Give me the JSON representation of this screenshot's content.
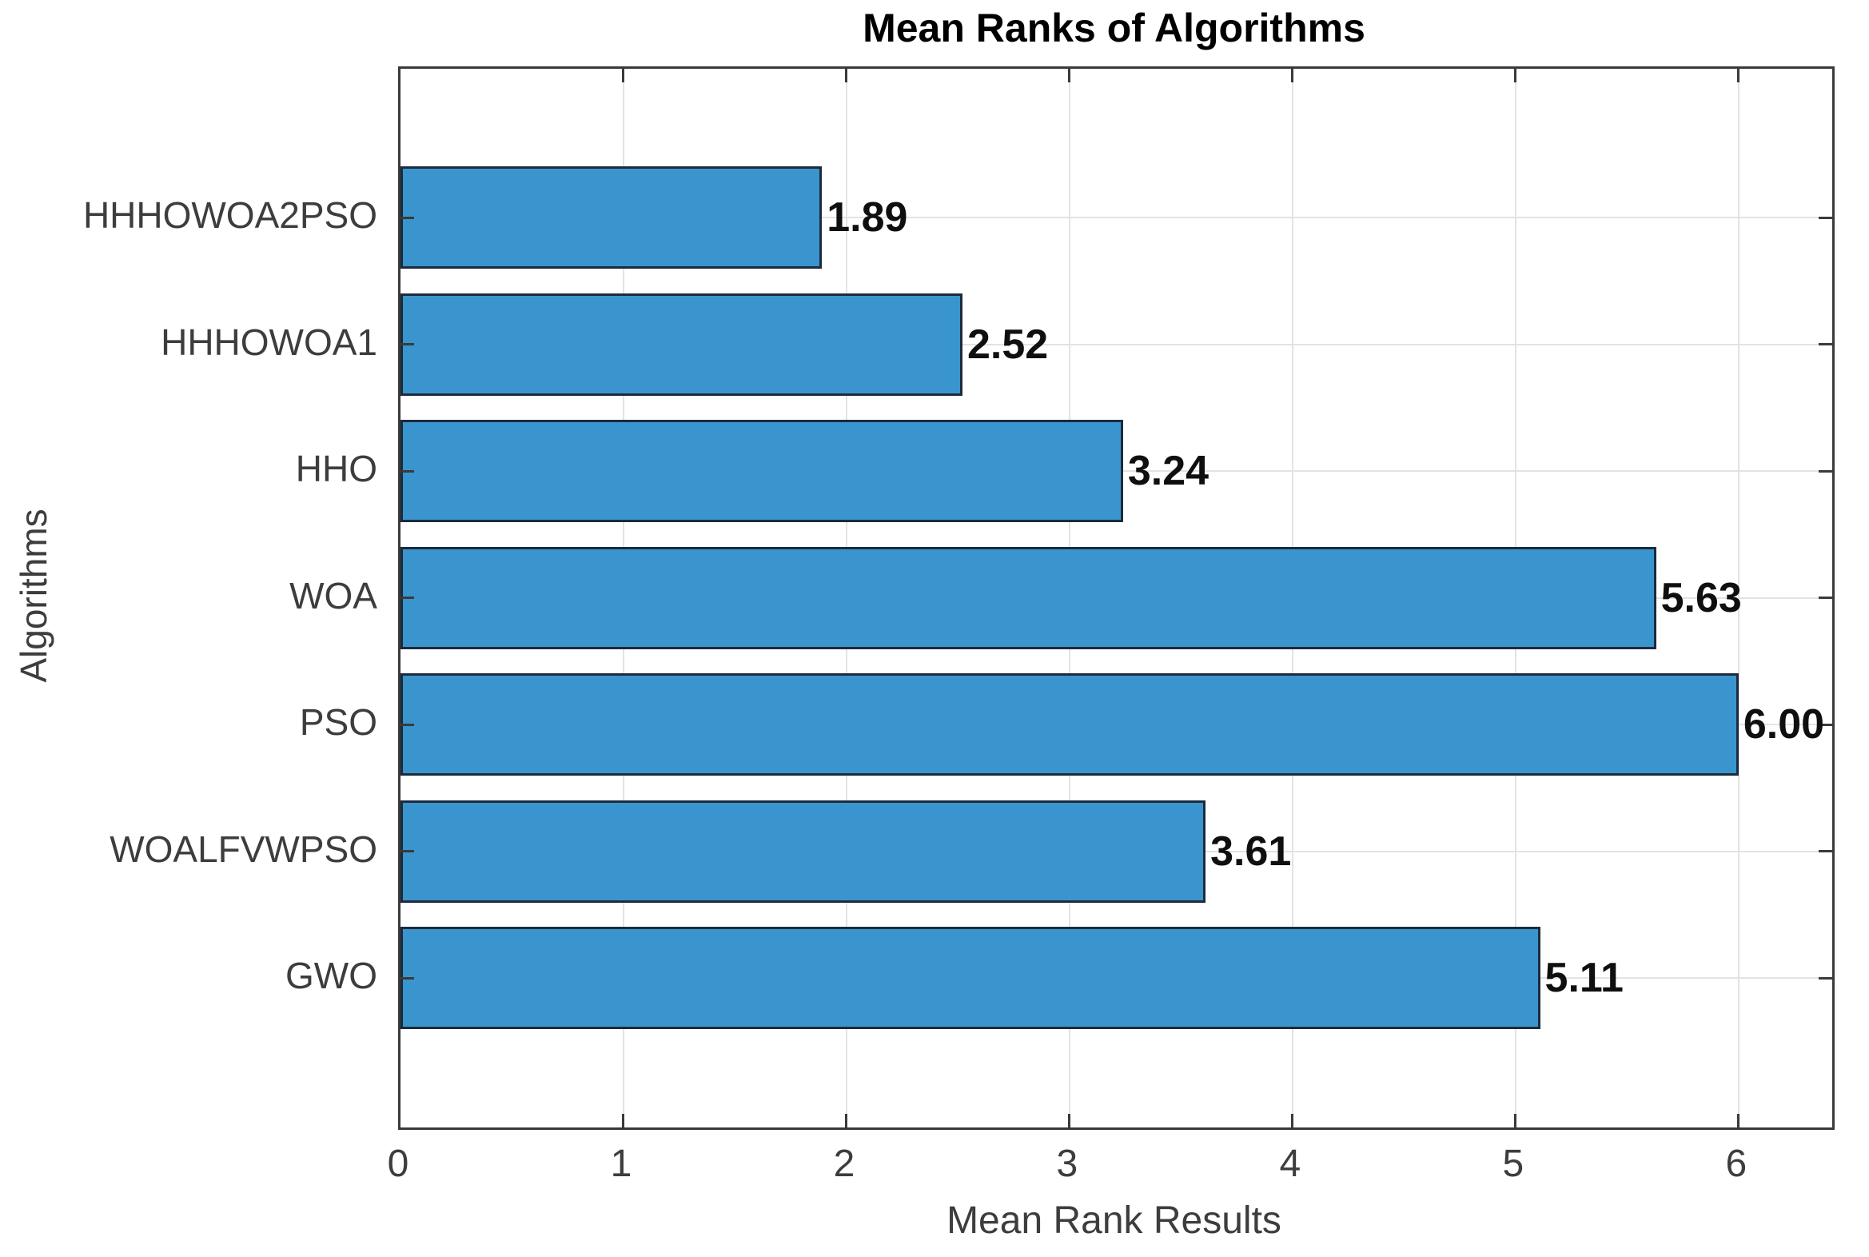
{
  "chart_data": {
    "type": "bar",
    "orientation": "horizontal",
    "title": "Mean Ranks of Algorithms",
    "xlabel": "Mean Rank Results",
    "ylabel": "Algorithms",
    "categories_top_to_bottom": [
      "HHHOWOA2PSO",
      "HHHOWOA1",
      "HHO",
      "WOA",
      "PSO",
      "WOALFVWPSO",
      "GWO"
    ],
    "values": [
      1.89,
      2.52,
      3.24,
      5.63,
      6.0,
      3.61,
      5.11
    ],
    "value_labels": [
      "1.89",
      "2.52",
      "3.24",
      "5.63",
      "6.00",
      "3.61",
      "5.11"
    ],
    "x_ticks": [
      0,
      1,
      2,
      3,
      4,
      5,
      6
    ],
    "x_tick_labels": [
      "0",
      "1",
      "2",
      "3",
      "4",
      "5",
      "6"
    ],
    "xlim": [
      0,
      6.42
    ],
    "grid": true,
    "legend": "none",
    "bar_color": "#3a95ce",
    "bar_edge_color": "#1c2b3c",
    "axis_color": "#3a3a3a",
    "grid_color": "#e3e3e3",
    "tick_text_color": "#3d3d3d",
    "title_color": "#000000",
    "value_text_color": "#0f0f0f"
  }
}
